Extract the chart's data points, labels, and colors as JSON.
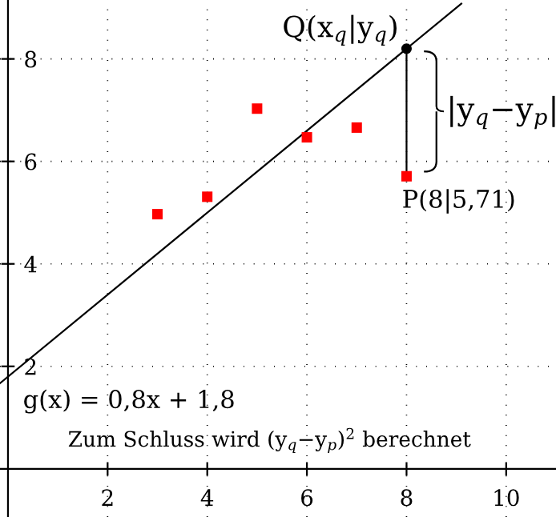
{
  "chart_data": {
    "type": "scatter",
    "xlim": [
      -0.16,
      11.0
    ],
    "ylim": [
      -0.94,
      9.15
    ],
    "xticks": [
      2,
      4,
      6,
      8,
      10
    ],
    "yticks": [
      2,
      4,
      6,
      8
    ],
    "grid": true,
    "series": [
      {
        "type": "line",
        "color": "#000000",
        "x": [
          -0.16,
          9.1
        ],
        "values": [
          1.67,
          9.08
        ],
        "marker": "none"
      },
      {
        "type": "line",
        "color": "#000000",
        "x": [
          8,
          8
        ],
        "values": [
          5.71,
          8.2
        ],
        "marker": "none"
      },
      {
        "color": "#ff0000",
        "x": [
          3,
          4,
          5,
          6,
          7,
          8
        ],
        "values": [
          4.97,
          5.31,
          7.03,
          6.47,
          6.66,
          5.71
        ],
        "marker": "square"
      },
      {
        "color": "#000000",
        "x": [
          8
        ],
        "values": [
          8.2
        ],
        "marker": "circle"
      }
    ],
    "annotations": [
      {
        "text": "Q(x$_{q}$|y$_{q}$)",
        "x": 8,
        "y": 8.2
      },
      {
        "text": "P(8|5,71)",
        "x": 8,
        "y": 5.71
      },
      "|y$_{q}$−y$_{p}$|",
      "g(x) = 0,8x + 1,8",
      "Zum Schluss wird (y$_{q}$−y$_{p}$)$^{2}$ berechnet"
    ]
  }
}
